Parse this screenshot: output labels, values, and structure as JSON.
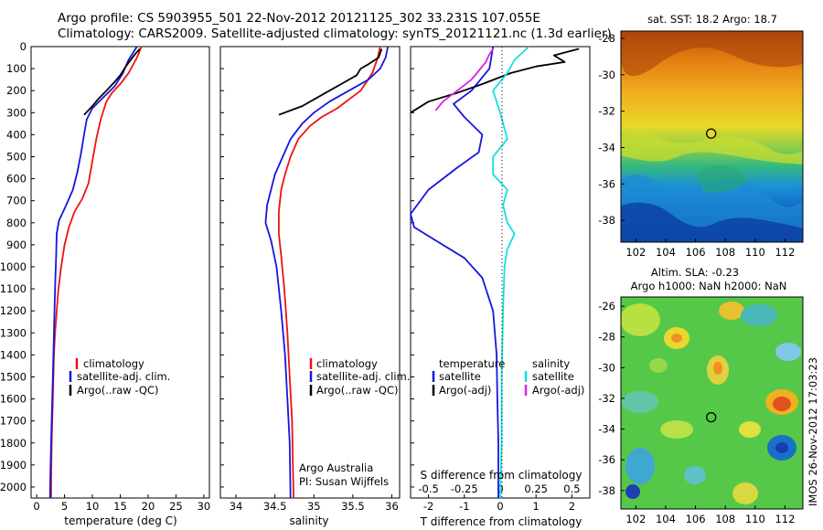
{
  "header": {
    "line1": "Argo profile: CS 5903955_501 22-Nov-2012 20121125_302 33.231S 107.055E",
    "line2": "Climatology: CARS2009. Satellite-adjusted climatology: synTS_20121121.nc (1.3d earlier)"
  },
  "footer_stamp": "IMOS 26-Nov-2012 17:03:23",
  "colors": {
    "climatology": "#ee1111",
    "satellite": "#1515dd",
    "argo": "#000000",
    "sat_salinity": "#11e0e0",
    "argo_salinity": "#dd22dd"
  },
  "chart_data": [
    {
      "id": "temperature",
      "type": "line",
      "xlabel": "temperature (deg C)",
      "ylabel": "",
      "xlim": [
        -1,
        31
      ],
      "ylim": [
        2050,
        0
      ],
      "xticks": [
        0,
        5,
        10,
        15,
        20,
        25,
        30
      ],
      "yticks": [
        0,
        100,
        200,
        300,
        400,
        500,
        600,
        700,
        800,
        900,
        1000,
        1100,
        1200,
        1300,
        1400,
        1500,
        1600,
        1700,
        1800,
        1900,
        2000
      ],
      "legend": [
        "climatology",
        "satellite-adj. clim.",
        "Argo(..raw -QC)"
      ],
      "series": [
        {
          "name": "climatology",
          "color": "#ee1111",
          "points": [
            [
              18.8,
              0
            ],
            [
              18,
              50
            ],
            [
              16.5,
              120
            ],
            [
              15,
              170
            ],
            [
              13.5,
              210
            ],
            [
              12.5,
              250
            ],
            [
              11.5,
              330
            ],
            [
              10.7,
              420
            ],
            [
              10,
              520
            ],
            [
              9.3,
              620
            ],
            [
              8.2,
              690
            ],
            [
              6.8,
              750
            ],
            [
              5.8,
              820
            ],
            [
              5,
              900
            ],
            [
              4.4,
              1000
            ],
            [
              3.9,
              1100
            ],
            [
              3.6,
              1200
            ],
            [
              3.3,
              1300
            ],
            [
              3.1,
              1400
            ],
            [
              2.9,
              1600
            ],
            [
              2.7,
              1800
            ],
            [
              2.6,
              2000
            ],
            [
              2.6,
              2050
            ]
          ]
        },
        {
          "name": "satellite-adj. clim.",
          "color": "#1515dd",
          "points": [
            [
              18,
              0
            ],
            [
              16.5,
              60
            ],
            [
              15.5,
              120
            ],
            [
              14,
              180
            ],
            [
              12,
              230
            ],
            [
              10,
              280
            ],
            [
              9,
              330
            ],
            [
              8.5,
              400
            ],
            [
              8,
              480
            ],
            [
              7.3,
              570
            ],
            [
              6.5,
              650
            ],
            [
              5.3,
              720
            ],
            [
              4,
              790
            ],
            [
              3.6,
              850
            ],
            [
              3.5,
              950
            ],
            [
              3.3,
              1100
            ],
            [
              3.1,
              1300
            ],
            [
              2.9,
              1500
            ],
            [
              2.7,
              1700
            ],
            [
              2.5,
              1900
            ],
            [
              2.4,
              2050
            ]
          ]
        },
        {
          "name": "Argo(..raw -QC)",
          "color": "#000000",
          "points": [
            [
              18.5,
              10
            ],
            [
              17.5,
              40
            ],
            [
              16,
              90
            ],
            [
              15,
              130
            ],
            [
              14,
              160
            ],
            [
              12.5,
              200
            ],
            [
              11,
              240
            ],
            [
              10,
              270
            ],
            [
              8.5,
              310
            ]
          ]
        }
      ]
    },
    {
      "id": "salinity",
      "type": "line",
      "xlabel": "salinity",
      "ylabel": "",
      "xlim": [
        33.8,
        36.1
      ],
      "ylim": [
        2050,
        0
      ],
      "xticks": [
        34,
        34.5,
        35,
        35.5,
        36
      ],
      "legend": [
        "climatology",
        "satellite-adj. clim.",
        "Argo(..raw -QC)"
      ],
      "annotation": [
        "Argo Australia",
        "PI: Susan Wijffels"
      ],
      "series": [
        {
          "name": "climatology",
          "color": "#ee1111",
          "points": [
            [
              35.85,
              0
            ],
            [
              35.82,
              50
            ],
            [
              35.75,
              120
            ],
            [
              35.6,
              200
            ],
            [
              35.3,
              280
            ],
            [
              35.1,
              320
            ],
            [
              34.95,
              360
            ],
            [
              34.8,
              420
            ],
            [
              34.7,
              500
            ],
            [
              34.63,
              580
            ],
            [
              34.58,
              650
            ],
            [
              34.55,
              750
            ],
            [
              34.55,
              850
            ],
            [
              34.58,
              950
            ],
            [
              34.62,
              1100
            ],
            [
              34.66,
              1300
            ],
            [
              34.69,
              1500
            ],
            [
              34.72,
              1700
            ],
            [
              34.73,
              1900
            ],
            [
              34.74,
              2050
            ]
          ]
        },
        {
          "name": "satellite-adj. clim.",
          "color": "#1515dd",
          "points": [
            [
              35.95,
              0
            ],
            [
              35.92,
              50
            ],
            [
              35.85,
              100
            ],
            [
              35.7,
              150
            ],
            [
              35.45,
              200
            ],
            [
              35.2,
              250
            ],
            [
              35.0,
              300
            ],
            [
              34.85,
              350
            ],
            [
              34.7,
              420
            ],
            [
              34.6,
              500
            ],
            [
              34.5,
              580
            ],
            [
              34.45,
              650
            ],
            [
              34.4,
              720
            ],
            [
              34.38,
              800
            ],
            [
              34.45,
              880
            ],
            [
              34.52,
              1000
            ],
            [
              34.58,
              1200
            ],
            [
              34.63,
              1400
            ],
            [
              34.66,
              1600
            ],
            [
              34.69,
              1800
            ],
            [
              34.7,
              2050
            ]
          ]
        },
        {
          "name": "Argo(..raw -QC)",
          "color": "#000000",
          "points": [
            [
              35.87,
              10
            ],
            [
              35.85,
              30
            ],
            [
              35.83,
              50
            ],
            [
              35.7,
              80
            ],
            [
              35.6,
              100
            ],
            [
              35.55,
              130
            ],
            [
              35.4,
              160
            ],
            [
              35.2,
              200
            ],
            [
              35.0,
              240
            ],
            [
              34.85,
              270
            ],
            [
              34.7,
              290
            ],
            [
              34.55,
              310
            ]
          ]
        }
      ]
    },
    {
      "id": "difference",
      "type": "line",
      "xlabel": "T difference from climatology",
      "x2label": "S difference from climatology",
      "xlim": [
        -2.5,
        2.5
      ],
      "ylim": [
        2050,
        0
      ],
      "xticks": [
        -2,
        -1,
        0,
        1,
        2
      ],
      "x2ticks": [
        -0.5,
        -0.25,
        0,
        0.25,
        0.5
      ],
      "legend_groups": [
        {
          "title": "temperature",
          "items": [
            "satellite",
            "Argo(-adj)"
          ]
        },
        {
          "title": "salinity",
          "items": [
            "satellite",
            "Argo(-adj)"
          ]
        }
      ],
      "series": [
        {
          "name": "temperature satellite",
          "color": "#1515dd",
          "points": [
            [
              -0.2,
              0
            ],
            [
              -0.3,
              100
            ],
            [
              -0.8,
              200
            ],
            [
              -1.3,
              260
            ],
            [
              -1.0,
              320
            ],
            [
              -0.5,
              400
            ],
            [
              -0.6,
              480
            ],
            [
              -1.2,
              550
            ],
            [
              -2.0,
              650
            ],
            [
              -2.5,
              760
            ],
            [
              -2.4,
              820
            ],
            [
              -1.8,
              880
            ],
            [
              -1.0,
              960
            ],
            [
              -0.5,
              1050
            ],
            [
              -0.2,
              1200
            ],
            [
              -0.1,
              1400
            ],
            [
              -0.08,
              1600
            ],
            [
              -0.05,
              1800
            ],
            [
              -0.05,
              2050
            ]
          ]
        },
        {
          "name": "temperature Argo(-adj)",
          "color": "#000000",
          "points": [
            [
              2.2,
              10
            ],
            [
              1.5,
              40
            ],
            [
              1.8,
              70
            ],
            [
              1,
              90
            ],
            [
              0.3,
              120
            ],
            [
              -0.5,
              170
            ],
            [
              -1.2,
              210
            ],
            [
              -2,
              250
            ],
            [
              -2.8,
              300
            ]
          ]
        },
        {
          "name": "salinity satellite",
          "color": "#11e0e0",
          "points": [
            [
              0.2,
              0
            ],
            [
              0.1,
              60
            ],
            [
              0.05,
              120
            ],
            [
              -0.05,
              200
            ],
            [
              0,
              300
            ],
            [
              0.05,
              420
            ],
            [
              -0.05,
              500
            ],
            [
              -0.05,
              580
            ],
            [
              0.05,
              650
            ],
            [
              0.02,
              720
            ],
            [
              0.05,
              800
            ],
            [
              0.1,
              850
            ],
            [
              0.05,
              920
            ],
            [
              0.03,
              1000
            ],
            [
              0.02,
              1200
            ],
            [
              0.01,
              1500
            ],
            [
              0.01,
              1800
            ],
            [
              0,
              2050
            ]
          ]
        },
        {
          "name": "salinity Argo(-adj)",
          "color": "#dd22dd",
          "points": [
            [
              -0.05,
              10
            ],
            [
              -0.08,
              40
            ],
            [
              -0.1,
              70
            ],
            [
              -0.15,
              110
            ],
            [
              -0.2,
              150
            ],
            [
              -0.3,
              200
            ],
            [
              -0.4,
              250
            ],
            [
              -0.45,
              290
            ]
          ]
        }
      ]
    },
    {
      "id": "sst_map",
      "type": "heatmap",
      "title": "sat. SST: 18.2  Argo: 18.7",
      "xlim": [
        101,
        113.2
      ],
      "ylim": [
        -39.2,
        -27.6
      ],
      "xticks": [
        102,
        104,
        106,
        108,
        110,
        112
      ],
      "yticks": [
        -28,
        -30,
        -32,
        -34,
        -36,
        -38
      ],
      "marker": {
        "lon": 107.05,
        "lat": -33.23
      }
    },
    {
      "id": "sla_map",
      "type": "heatmap",
      "title": [
        "Altim. SLA: -0.23",
        "Argo h1000: NaN h2000: NaN"
      ],
      "xlim": [
        101,
        113.2
      ],
      "ylim": [
        -39.2,
        -25.4
      ],
      "xticks": [
        102,
        104,
        106,
        108,
        110,
        112
      ],
      "yticks": [
        -26,
        -28,
        -30,
        -32,
        -34,
        -36,
        -38
      ],
      "marker": {
        "lon": 107.05,
        "lat": -33.23
      }
    }
  ]
}
